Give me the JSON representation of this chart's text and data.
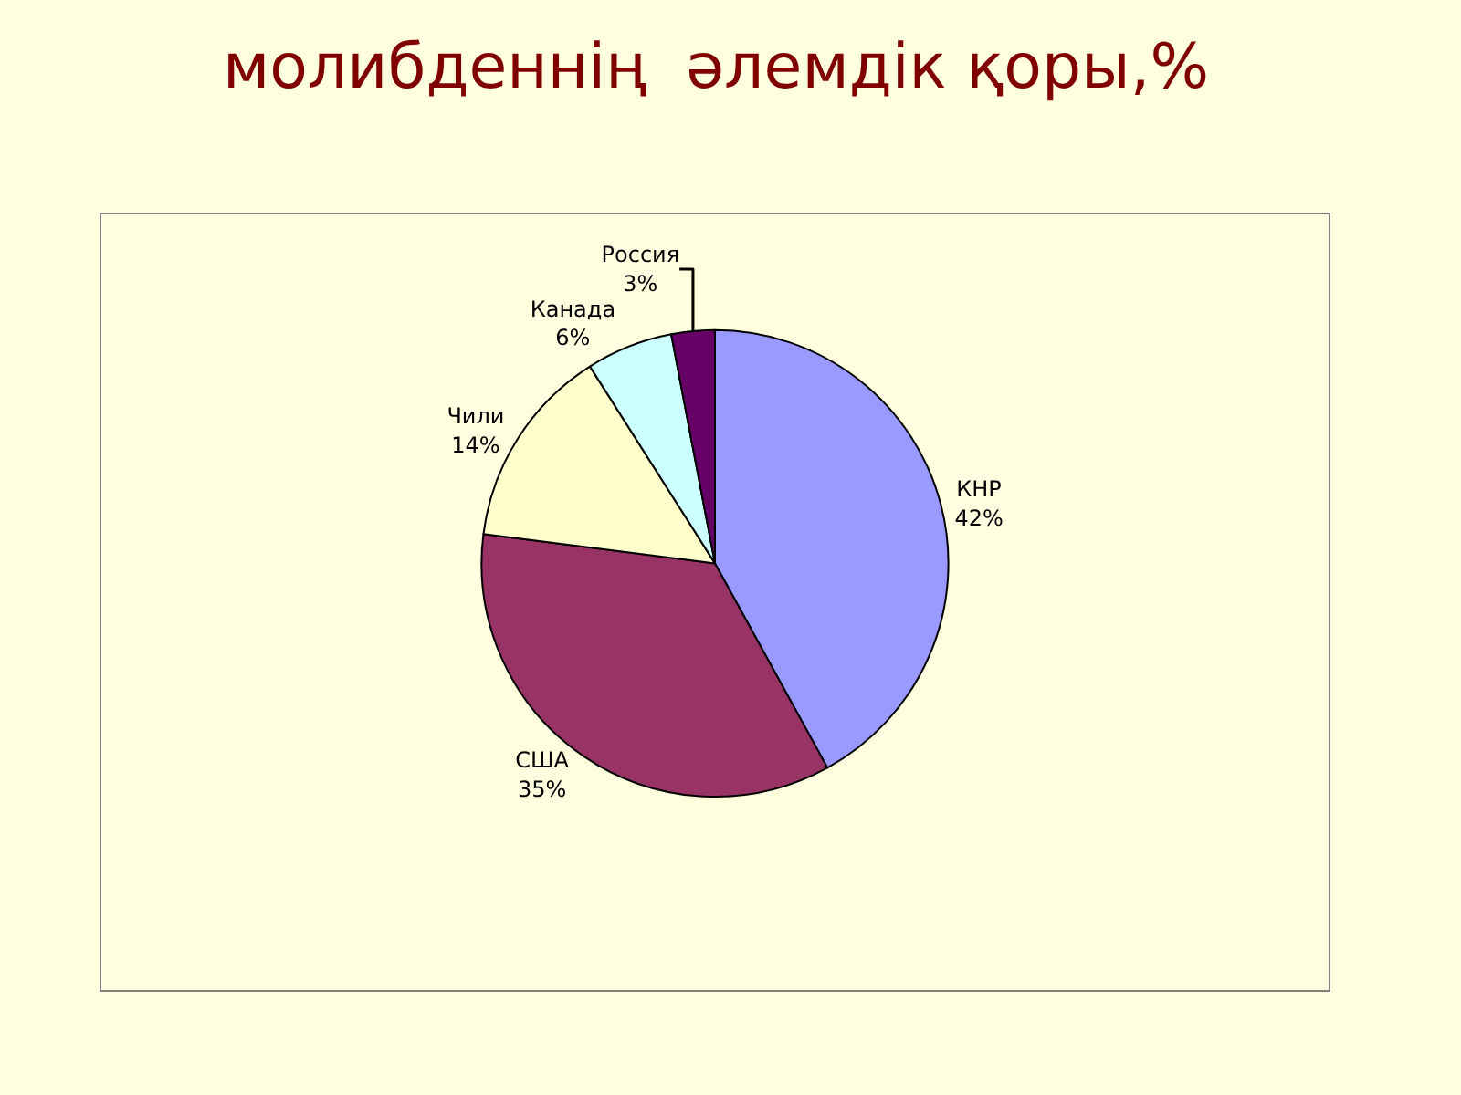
{
  "chart_data": {
    "type": "pie",
    "title": "молибденнің  әлемдік қоры,%",
    "categories": [
      "КНР",
      "США",
      "Чили",
      "Канада",
      "Россия"
    ],
    "values": [
      42,
      35,
      14,
      6,
      3
    ],
    "colors": [
      "#9999ff",
      "#993366",
      "#ffffcc",
      "#ccffff",
      "#660066"
    ],
    "value_labels": [
      "42%",
      "35%",
      "14%",
      "6%",
      "3%"
    ],
    "legend": false
  }
}
